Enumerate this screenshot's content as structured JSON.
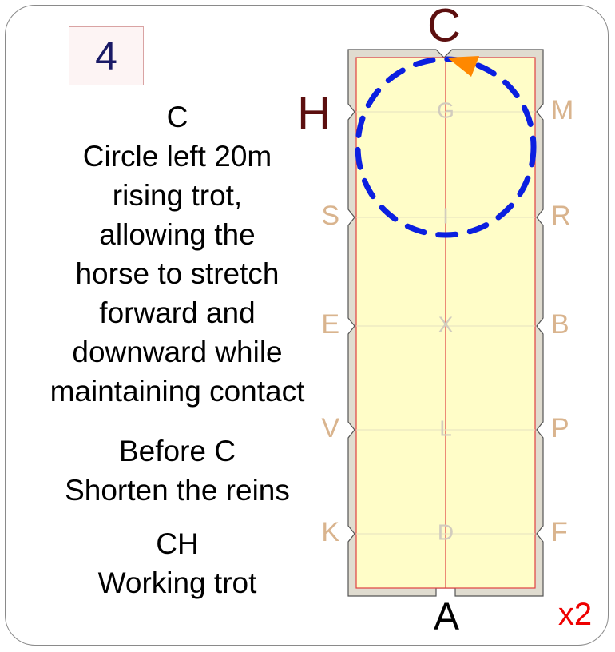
{
  "movement_number": "4",
  "instructions": [
    {
      "marker": "C",
      "lines": [
        "Circle left 20m",
        "rising trot,",
        "allowing the",
        "horse to stretch",
        "forward and",
        "downward while",
        "maintaining contact"
      ]
    },
    {
      "marker": "Before C",
      "lines": [
        "Shorten the reins"
      ]
    },
    {
      "marker": "CH",
      "lines": [
        "Working trot"
      ]
    }
  ],
  "arena": {
    "letters": {
      "top": "C",
      "bottom": "A",
      "left": [
        "H",
        "S",
        "E",
        "V",
        "K"
      ],
      "right": [
        "M",
        "R",
        "B",
        "P",
        "F"
      ],
      "centerline": [
        "G",
        "I",
        "X",
        "L",
        "D"
      ]
    },
    "highlighted_letters": [
      "C",
      "H"
    ],
    "colors": {
      "arena_fill": "#fffdc8",
      "border": "#e0dcd0",
      "red_line": "#e04040",
      "letter_muted": "#d9b48e",
      "letter_highlight": "#5c0f0f",
      "circle_path": "#0b1fe0",
      "direction_arrow": "#ff8800",
      "repeat_label": "#ee0000"
    }
  },
  "repeat_label": "x2"
}
